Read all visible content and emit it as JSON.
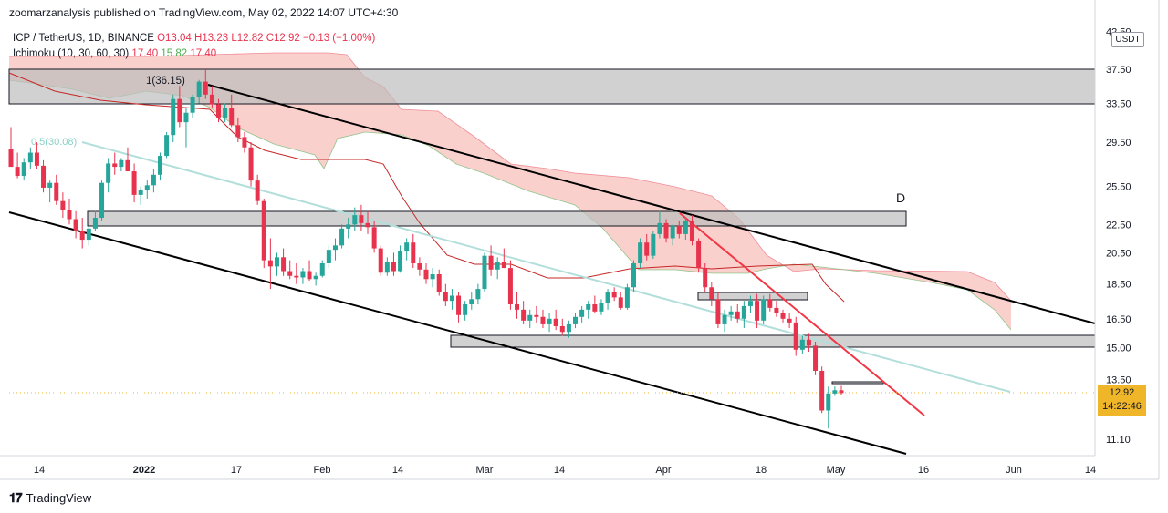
{
  "header": {
    "published_by": "zoomarzanalysis published on TradingView.com, May 02, 2022 14:07 UTC+4:30"
  },
  "legend": {
    "symbol": "ICP / TetherUS, 1D, BINANCE",
    "open": "O13.04",
    "high": "H13.23",
    "low": "L12.82",
    "close": "C12.92",
    "change": "−0.13 (−1.00%)",
    "indicator": "Ichimoku (10, 30, 60, 30)",
    "ind_values": [
      "17.40",
      "15.82",
      "17.40"
    ]
  },
  "currency": "USDT",
  "last_price": "12.92",
  "countdown": "14:22:46",
  "brand": "TradingView",
  "colors": {
    "up": "#26a69a",
    "down": "#e8334f",
    "cloud_bear": "#f8c8c3",
    "cloud_bull": "#d9ead3",
    "trend_red": "#f23645",
    "teal_line": "#b2dfdb"
  },
  "chart_data": {
    "type": "candlestick",
    "symbol": "ICPUSDT",
    "timeframe": "1D",
    "log_scale": true,
    "y_ticks": [
      "42.50",
      "37.50",
      "33.50",
      "29.50",
      "25.50",
      "22.50",
      "20.50",
      "18.50",
      "16.50",
      "15.00",
      "13.50",
      "11.10"
    ],
    "x_ticks": [
      "14",
      "2022",
      "17",
      "Feb",
      "14",
      "Mar",
      "14",
      "Apr",
      "18",
      "May",
      "16",
      "Jun",
      "14"
    ],
    "annotations": {
      "fib_top": "1(36.15)",
      "fib_mid": "0.5(30.08)",
      "wave_label": "D"
    },
    "candles_approx": [
      [
        28.8,
        31.0,
        27.5,
        27.2
      ],
      [
        27.2,
        28.5,
        26.2,
        26.4
      ],
      [
        26.4,
        28.0,
        26.0,
        27.6
      ],
      [
        27.6,
        29.0,
        27.0,
        28.5
      ],
      [
        28.5,
        29.5,
        27.0,
        27.3
      ],
      [
        27.3,
        27.8,
        25.0,
        25.4
      ],
      [
        25.4,
        26.0,
        24.2,
        25.8
      ],
      [
        25.8,
        26.5,
        24.0,
        24.3
      ],
      [
        24.3,
        25.0,
        23.0,
        23.6
      ],
      [
        23.6,
        24.5,
        22.5,
        22.9
      ],
      [
        22.9,
        23.5,
        21.5,
        22.0
      ],
      [
        22.0,
        23.0,
        20.8,
        21.4
      ],
      [
        21.4,
        22.5,
        21.0,
        22.2
      ],
      [
        22.2,
        23.5,
        22.0,
        23.0
      ],
      [
        23.0,
        26.0,
        22.8,
        25.8
      ],
      [
        25.8,
        28.0,
        25.0,
        27.5
      ],
      [
        27.5,
        28.5,
        26.5,
        27.2
      ],
      [
        27.2,
        28.0,
        26.8,
        27.8
      ],
      [
        27.8,
        29.0,
        27.0,
        26.8
      ],
      [
        26.8,
        27.5,
        24.2,
        24.8
      ],
      [
        24.8,
        25.5,
        24.0,
        25.2
      ],
      [
        25.2,
        26.0,
        24.5,
        25.6
      ],
      [
        25.6,
        27.0,
        25.0,
        26.5
      ],
      [
        26.5,
        28.5,
        26.0,
        28.2
      ],
      [
        28.2,
        30.5,
        28.0,
        30.2
      ],
      [
        30.2,
        34.5,
        29.5,
        34.0
      ],
      [
        34.0,
        35.5,
        31.0,
        31.5
      ],
      [
        31.5,
        33.0,
        29.0,
        32.5
      ],
      [
        32.5,
        34.5,
        32.0,
        34.2
      ],
      [
        34.2,
        36.2,
        33.5,
        36.0
      ],
      [
        36.0,
        37.5,
        34.0,
        34.5
      ],
      [
        34.5,
        35.5,
        33.0,
        33.4
      ],
      [
        33.4,
        34.0,
        31.5,
        32.0
      ],
      [
        32.0,
        33.5,
        31.5,
        33.0
      ],
      [
        33.0,
        34.5,
        31.0,
        31.2
      ],
      [
        31.2,
        32.0,
        29.5,
        30.0
      ],
      [
        30.0,
        30.5,
        28.5,
        29.0
      ],
      [
        29.0,
        29.5,
        25.5,
        26.0
      ],
      [
        26.0,
        26.5,
        24.0,
        24.3
      ],
      [
        24.3,
        24.5,
        19.5,
        20.0
      ],
      [
        20.0,
        21.5,
        18.2,
        19.6
      ],
      [
        19.6,
        20.5,
        19.0,
        20.2
      ],
      [
        20.2,
        20.8,
        19.0,
        19.3
      ],
      [
        19.3,
        20.0,
        18.8,
        19.0
      ],
      [
        19.0,
        19.8,
        18.5,
        18.9
      ],
      [
        18.9,
        19.5,
        18.5,
        19.3
      ],
      [
        19.3,
        20.0,
        18.7,
        18.8
      ],
      [
        18.8,
        19.2,
        18.4,
        19.0
      ],
      [
        19.0,
        20.0,
        18.9,
        19.8
      ],
      [
        19.8,
        21.0,
        19.5,
        20.7
      ],
      [
        20.7,
        21.5,
        20.0,
        21.0
      ],
      [
        21.0,
        22.5,
        20.8,
        22.2
      ],
      [
        22.2,
        23.0,
        21.5,
        22.5
      ],
      [
        22.5,
        23.8,
        22.0,
        23.2
      ],
      [
        23.2,
        24.0,
        22.0,
        22.6
      ],
      [
        22.6,
        23.5,
        21.8,
        22.3
      ],
      [
        22.3,
        22.8,
        20.5,
        20.8
      ],
      [
        20.8,
        21.0,
        19.0,
        19.2
      ],
      [
        19.2,
        20.2,
        19.0,
        19.9
      ],
      [
        19.9,
        20.5,
        19.0,
        19.3
      ],
      [
        19.3,
        21.0,
        19.2,
        20.6
      ],
      [
        20.6,
        21.5,
        20.0,
        21.2
      ],
      [
        21.2,
        21.8,
        19.5,
        19.8
      ],
      [
        19.8,
        20.2,
        19.0,
        19.4
      ],
      [
        19.4,
        19.8,
        18.5,
        18.8
      ],
      [
        18.8,
        19.5,
        18.3,
        19.1
      ],
      [
        19.1,
        19.4,
        17.8,
        18.0
      ],
      [
        18.0,
        18.5,
        17.2,
        17.5
      ],
      [
        17.5,
        18.2,
        17.0,
        17.8
      ],
      [
        17.8,
        18.0,
        16.3,
        16.7
      ],
      [
        16.7,
        17.5,
        16.4,
        17.3
      ],
      [
        17.3,
        18.0,
        17.0,
        17.6
      ],
      [
        17.6,
        18.5,
        17.3,
        18.2
      ],
      [
        18.2,
        20.5,
        18.0,
        20.3
      ],
      [
        20.3,
        21.0,
        19.0,
        19.4
      ],
      [
        19.4,
        20.2,
        18.8,
        19.9
      ],
      [
        19.9,
        20.8,
        19.5,
        19.5
      ],
      [
        19.5,
        20.0,
        17.0,
        17.3
      ],
      [
        17.3,
        18.0,
        16.5,
        17.0
      ],
      [
        17.0,
        17.5,
        16.2,
        16.4
      ],
      [
        16.4,
        17.0,
        16.0,
        16.7
      ],
      [
        16.7,
        17.2,
        16.3,
        16.6
      ],
      [
        16.6,
        17.0,
        16.0,
        16.2
      ],
      [
        16.2,
        16.8,
        15.8,
        16.5
      ],
      [
        16.5,
        17.0,
        15.9,
        16.1
      ],
      [
        16.1,
        16.5,
        15.6,
        15.8
      ],
      [
        15.8,
        16.4,
        15.5,
        16.2
      ],
      [
        16.2,
        16.8,
        16.0,
        16.6
      ],
      [
        16.6,
        17.2,
        16.3,
        17.0
      ],
      [
        17.0,
        17.5,
        16.5,
        17.3
      ],
      [
        17.3,
        17.8,
        16.8,
        16.9
      ],
      [
        16.9,
        17.6,
        16.7,
        17.4
      ],
      [
        17.4,
        18.2,
        17.0,
        18.0
      ],
      [
        18.0,
        18.3,
        17.5,
        17.7
      ],
      [
        17.7,
        18.0,
        17.0,
        17.1
      ],
      [
        17.1,
        18.5,
        17.0,
        18.3
      ],
      [
        18.3,
        20.0,
        18.0,
        19.8
      ],
      [
        19.8,
        21.5,
        19.5,
        21.2
      ],
      [
        21.2,
        21.8,
        20.0,
        20.3
      ],
      [
        20.3,
        22.0,
        20.1,
        21.8
      ],
      [
        21.8,
        23.5,
        21.5,
        22.6
      ],
      [
        22.6,
        22.9,
        21.2,
        21.5
      ],
      [
        21.5,
        22.5,
        21.0,
        22.4
      ],
      [
        22.4,
        22.8,
        21.5,
        21.8
      ],
      [
        21.8,
        23.0,
        21.4,
        22.8
      ],
      [
        22.8,
        23.2,
        21.0,
        21.3
      ],
      [
        21.3,
        21.5,
        19.2,
        19.5
      ],
      [
        19.5,
        19.8,
        18.0,
        18.3
      ],
      [
        18.3,
        18.6,
        17.2,
        17.6
      ],
      [
        17.6,
        18.0,
        16.0,
        16.2
      ],
      [
        16.2,
        17.0,
        15.8,
        16.7
      ],
      [
        16.7,
        17.2,
        16.4,
        16.9
      ],
      [
        16.9,
        17.3,
        16.3,
        16.5
      ],
      [
        16.5,
        17.5,
        16.0,
        17.2
      ],
      [
        17.2,
        17.8,
        16.8,
        17.5
      ],
      [
        17.5,
        17.9,
        16.0,
        16.4
      ],
      [
        16.4,
        17.8,
        16.2,
        17.6
      ],
      [
        17.6,
        17.9,
        16.9,
        17.1
      ],
      [
        17.1,
        17.5,
        16.6,
        16.8
      ],
      [
        16.8,
        17.0,
        16.3,
        16.5
      ],
      [
        16.5,
        16.8,
        16.0,
        16.3
      ],
      [
        16.3,
        16.6,
        14.6,
        14.9
      ],
      [
        14.9,
        15.6,
        14.7,
        15.4
      ],
      [
        15.4,
        15.7,
        14.8,
        15.1
      ],
      [
        15.1,
        15.3,
        13.7,
        13.9
      ],
      [
        13.9,
        14.1,
        12.1,
        12.2
      ],
      [
        12.2,
        13.2,
        11.5,
        12.9
      ],
      [
        12.9,
        13.2,
        12.8,
        13.04
      ],
      [
        13.04,
        13.23,
        12.82,
        12.92
      ]
    ]
  }
}
